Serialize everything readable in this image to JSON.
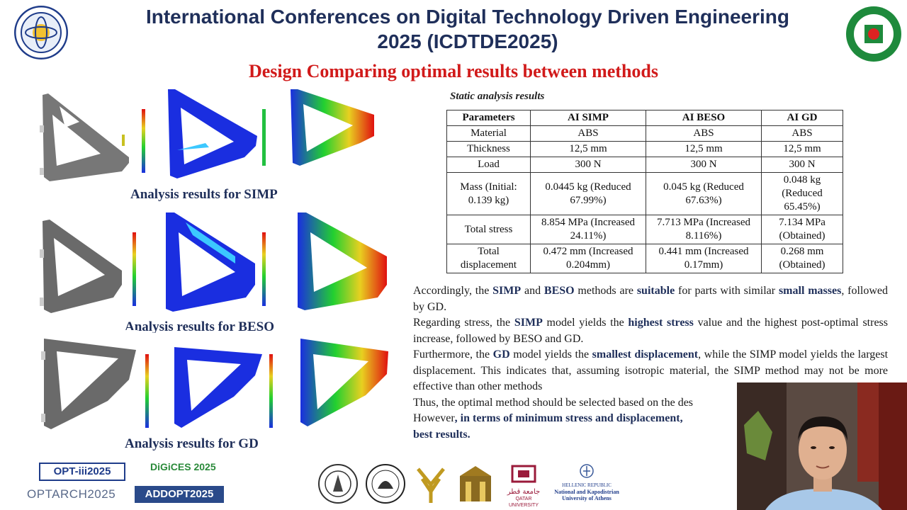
{
  "header": {
    "title_line1": "International Conferences on Digital Technology Driven Engineering",
    "title_line2": "2025 (ICDTDE2025)",
    "subtitle": "Design Comparing optimal results between methods"
  },
  "analysis": {
    "simp_caption": "Analysis results for SIMP",
    "beso_caption": "Analysis results for BESO",
    "gd_caption": "Analysis results for GD"
  },
  "table": {
    "title": "Static analysis results",
    "headers": [
      "Parameters",
      "AI SIMP",
      "AI BESO",
      "AI GD"
    ],
    "rows": [
      {
        "param": "Material",
        "simp": "ABS",
        "beso": "ABS",
        "gd": "ABS"
      },
      {
        "param": "Thickness",
        "simp": "12,5 mm",
        "beso": "12,5 mm",
        "gd": "12,5 mm"
      },
      {
        "param": "Load",
        "simp": "300 N",
        "beso": "300 N",
        "gd": "300 N"
      },
      {
        "param": "Mass (Initial: 0.139 kg)",
        "simp": "0.0445 kg (Reduced 67.99%)",
        "beso": "0.045 kg (Reduced 67.63%)",
        "gd": "0.048 kg (Reduced 65.45%)"
      },
      {
        "param": "Total stress",
        "simp": "8.854 MPa (Increased 24.11%)",
        "beso": "7.713 MPa (Increased 8.116%)",
        "gd": "7.134 MPa (Obtained)"
      },
      {
        "param": "Total displacement",
        "simp": "0.472 mm (Increased 0.204mm)",
        "beso": "0.441 mm (Increased 0.17mm)",
        "gd": "0.268 mm (Obtained)"
      }
    ]
  },
  "text": {
    "p1_a": "Accordingly, the ",
    "p1_b": "SIMP",
    "p1_c": " and ",
    "p1_d": "BESO",
    "p1_e": " methods are ",
    "p1_f": "suitable",
    "p1_g": " for parts with similar ",
    "p1_h": "small masses",
    "p1_i": ", followed by GD.",
    "p2_a": "Regarding stress, the ",
    "p2_b": "SIMP",
    "p2_c": " model yields the ",
    "p2_d": "highest stress",
    "p2_e": " value and the highest post-optimal stress increase, followed by BESO and GD.",
    "p3_a": "Furthermore, the ",
    "p3_b": "GD",
    "p3_c": " model yields the ",
    "p3_d": "smallest displacement",
    "p3_e": ", while the SIMP model yields the largest displacement. This indicates that, assuming isotropic material, the SIMP method may not be more effective than other methods",
    "p4": "Thus, the optimal method should be selected based on the des",
    "p5_a": "However",
    "p5_b": ", in terms of minimum stress and displacement,",
    "p5_c": "best results."
  },
  "footer": {
    "opt": "OPT-iii2025",
    "digices": "DiGiCES 2025",
    "optarch": "OPTARCH2025",
    "addopt": "ADDOPT2025",
    "qatar": "QATAR UNIVERSITY",
    "qatar_ar": "جامعة قطر",
    "hellenic1": "HELLENIC REPUBLIC",
    "hellenic2": "National and Kapodistrian",
    "hellenic3": "University of Athens"
  },
  "colors": {
    "title": "#1f2f5a",
    "subtitle": "#d11a1a",
    "fea_blue": "#1a2ee0",
    "fea_red": "#e01010",
    "fea_green": "#22d030"
  }
}
